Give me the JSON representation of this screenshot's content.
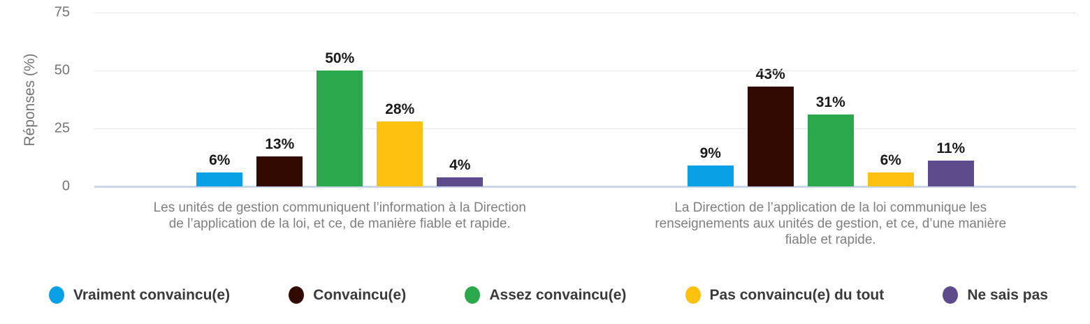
{
  "chart_data": {
    "type": "bar",
    "title": "",
    "xlabel": "",
    "ylabel": "Réponses (%)",
    "ylim": [
      0,
      75
    ],
    "yticks": [
      0,
      25,
      50,
      75
    ],
    "grid": "horizontal",
    "legend_position": "bottom",
    "value_label_format": "{v}%",
    "categories": [
      "Les unités de gestion communiquent l’information à la Direction de l’application de la loi, et ce, de manière fiable et rapide.",
      "La Direction de l’application de la loi communique les renseignements aux unités de gestion, et ce, d’une manière fiable et rapide."
    ],
    "series": [
      {
        "name": "Vraiment convaincu(e)",
        "color": "#09a0e6",
        "values": [
          6,
          9
        ]
      },
      {
        "name": "Convaincu(e)",
        "color": "#330a02",
        "values": [
          13,
          43
        ]
      },
      {
        "name": "Assez convaincu(e)",
        "color": "#2ba84b",
        "values": [
          50,
          31
        ]
      },
      {
        "name": "Pas convaincu(e) du tout",
        "color": "#ffc110",
        "values": [
          28,
          6
        ]
      },
      {
        "name": "Ne sais pas",
        "color": "#5e4b8b",
        "values": [
          4,
          11
        ]
      }
    ]
  },
  "colors": {
    "axis_text": "#757575",
    "category_text": "#7f7f7f",
    "legend_text": "#3a3a3a",
    "value_label_text": "#1a1a1a",
    "gridline": "#e4e4e4",
    "baseline": "#ccd6e9",
    "background": "#ffffff"
  }
}
